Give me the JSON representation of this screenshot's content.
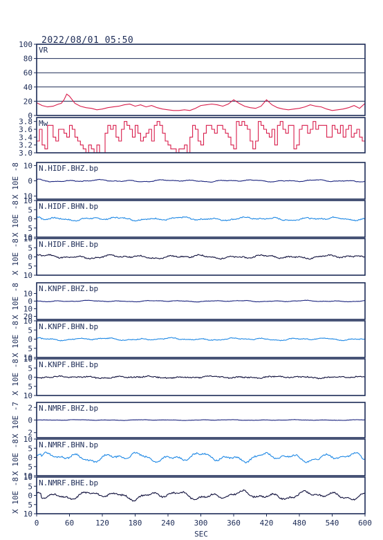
{
  "timestamp": "2022/08/01  05:50",
  "xlabel": "SEC",
  "x_ticks": [
    "0",
    "60",
    "120",
    "180",
    "240",
    "300",
    "360",
    "420",
    "480",
    "540",
    "600"
  ],
  "colors": {
    "axis": "#1b2a55",
    "vr": "#d81b4a",
    "mw": "#d81b4a",
    "bhz": "#1a237e",
    "bhn": "#1e88e5",
    "bhe": "#0d0d3a"
  },
  "chart_data": [
    {
      "type": "line",
      "label": "VR",
      "ylabel": "",
      "xlim": [
        0,
        600
      ],
      "ylim": [
        0,
        100
      ],
      "yticks": [
        0,
        20,
        40,
        60,
        80,
        100
      ],
      "ytick_labels": [
        "0",
        "20",
        "40",
        "60",
        "80",
        "100"
      ],
      "grid": true,
      "series": [
        {
          "color": "#d81b4a",
          "x": [
            0,
            10,
            20,
            30,
            40,
            45,
            50,
            55,
            60,
            70,
            80,
            90,
            100,
            110,
            120,
            130,
            140,
            150,
            160,
            170,
            180,
            190,
            200,
            210,
            220,
            230,
            240,
            250,
            260,
            270,
            280,
            290,
            300,
            310,
            320,
            330,
            340,
            350,
            360,
            370,
            380,
            390,
            400,
            410,
            420,
            430,
            440,
            450,
            460,
            470,
            480,
            490,
            500,
            510,
            520,
            530,
            540,
            550,
            560,
            570,
            580,
            590,
            600
          ],
          "y": [
            18,
            14,
            12,
            13,
            16,
            17,
            22,
            30,
            27,
            17,
            13,
            11,
            10,
            8,
            9,
            11,
            12,
            13,
            15,
            16,
            13,
            15,
            12,
            14,
            11,
            9,
            8,
            7,
            7,
            8,
            7,
            10,
            14,
            15,
            16,
            15,
            13,
            16,
            22,
            17,
            13,
            11,
            10,
            13,
            22,
            15,
            11,
            9,
            8,
            9,
            10,
            12,
            15,
            13,
            12,
            9,
            7,
            8,
            9,
            11,
            14,
            10,
            17
          ]
        }
      ]
    },
    {
      "type": "line",
      "label": "Mw",
      "ylabel": "",
      "xlim": [
        0,
        600
      ],
      "ylim": [
        3.0,
        3.9
      ],
      "yticks": [
        3.0,
        3.2,
        3.4,
        3.6,
        3.8
      ],
      "ytick_labels": [
        "3.0",
        "3.2",
        "3.4",
        "3.6",
        "3.8"
      ],
      "grid": false,
      "series": [
        {
          "color": "#d81b4a",
          "x": [
            0,
            5,
            10,
            15,
            20,
            25,
            30,
            35,
            40,
            45,
            50,
            55,
            60,
            65,
            70,
            75,
            80,
            85,
            90,
            95,
            100,
            105,
            110,
            115,
            120,
            125,
            130,
            135,
            140,
            145,
            150,
            155,
            160,
            165,
            170,
            175,
            180,
            185,
            190,
            195,
            200,
            205,
            210,
            215,
            220,
            225,
            230,
            235,
            240,
            245,
            250,
            255,
            260,
            265,
            270,
            275,
            280,
            285,
            290,
            295,
            300,
            305,
            310,
            315,
            320,
            325,
            330,
            335,
            340,
            345,
            350,
            355,
            360,
            365,
            370,
            375,
            380,
            385,
            390,
            395,
            400,
            405,
            410,
            415,
            420,
            425,
            430,
            435,
            440,
            445,
            450,
            455,
            460,
            465,
            470,
            475,
            480,
            485,
            490,
            495,
            500,
            505,
            510,
            515,
            520,
            525,
            530,
            535,
            540,
            545,
            550,
            555,
            560,
            565,
            570,
            575,
            580,
            585,
            590,
            595,
            600
          ],
          "y": [
            3.3,
            3.6,
            3.2,
            3.1,
            3.7,
            3.7,
            3.4,
            3.3,
            3.6,
            3.6,
            3.5,
            3.4,
            3.7,
            3.6,
            3.4,
            3.3,
            3.2,
            3.1,
            3.0,
            3.2,
            3.1,
            3.0,
            3.2,
            3.0,
            3.0,
            3.5,
            3.7,
            3.6,
            3.7,
            3.4,
            3.3,
            3.6,
            3.8,
            3.7,
            3.6,
            3.4,
            3.7,
            3.5,
            3.3,
            3.4,
            3.5,
            3.6,
            3.3,
            3.7,
            3.8,
            3.7,
            3.5,
            3.3,
            3.2,
            3.1,
            3.1,
            3.0,
            3.1,
            3.1,
            3.2,
            3.0,
            3.4,
            3.7,
            3.6,
            3.3,
            3.2,
            3.5,
            3.7,
            3.7,
            3.6,
            3.5,
            3.7,
            3.7,
            3.6,
            3.5,
            3.4,
            3.2,
            3.1,
            3.8,
            3.7,
            3.8,
            3.7,
            3.6,
            3.3,
            3.1,
            3.3,
            3.8,
            3.7,
            3.6,
            3.5,
            3.4,
            3.6,
            3.2,
            3.7,
            3.8,
            3.6,
            3.5,
            3.7,
            3.7,
            3.1,
            3.2,
            3.6,
            3.7,
            3.7,
            3.5,
            3.6,
            3.8,
            3.6,
            3.7,
            3.7,
            3.7,
            3.4,
            3.4,
            3.7,
            3.6,
            3.5,
            3.7,
            3.4,
            3.6,
            3.7,
            3.4,
            3.5,
            3.6,
            3.4,
            3.3,
            3.3
          ]
        }
      ]
    },
    {
      "type": "line",
      "label": "N.HIDF.BHZ.bp",
      "ylabel": "X 10E -8",
      "xlim": [
        0,
        600
      ],
      "ylim": [
        -12,
        12
      ],
      "yticks": [
        -10,
        0,
        10
      ],
      "ytick_labels": [
        "10",
        "0",
        "10"
      ],
      "grid": false,
      "series": [
        {
          "color": "#1a237e",
          "amp": 0.6,
          "seed": 3,
          "noise": 0.15
        }
      ]
    },
    {
      "type": "line",
      "label": "N.HIDF.BHN.bp",
      "ylabel": "X 10E -8",
      "xlim": [
        0,
        600
      ],
      "ylim": [
        -10,
        10
      ],
      "yticks": [
        -10,
        -5,
        0,
        5,
        10
      ],
      "ytick_labels": [
        "10",
        "5",
        "0",
        "5",
        "10"
      ],
      "grid": false,
      "series": [
        {
          "color": "#1e88e5",
          "amp": 0.8,
          "seed": 7,
          "noise": 0.3
        }
      ]
    },
    {
      "type": "line",
      "label": "N.HIDF.BHE.bp",
      "ylabel": "X 10E -8",
      "xlim": [
        0,
        600
      ],
      "ylim": [
        -10,
        10
      ],
      "yticks": [
        -10,
        -5,
        0,
        5,
        10
      ],
      "ytick_labels": [
        "10",
        "5",
        "0",
        "5",
        "10"
      ],
      "grid": false,
      "series": [
        {
          "color": "#0d0d3a",
          "amp": 0.9,
          "seed": 11,
          "noise": 0.3
        }
      ]
    },
    {
      "type": "line",
      "label": "N.KNPF.BHZ.bp",
      "ylabel": "X 10E -8",
      "xlim": [
        0,
        600
      ],
      "ylim": [
        -24,
        24
      ],
      "yticks": [
        -20,
        -10,
        0,
        10
      ],
      "ytick_labels": [
        "20",
        "10",
        "0",
        "10"
      ],
      "grid": false,
      "series": [
        {
          "color": "#1a237e",
          "amp": 0.8,
          "seed": 13,
          "noise": 0.2
        }
      ]
    },
    {
      "type": "line",
      "label": "N.KNPF.BHN.bp",
      "ylabel": "X 10E -8",
      "xlim": [
        0,
        600
      ],
      "ylim": [
        -10,
        10
      ],
      "yticks": [
        -10,
        -5,
        0,
        5,
        10
      ],
      "ytick_labels": [
        "10",
        "5",
        "0",
        "5",
        "10"
      ],
      "grid": false,
      "series": [
        {
          "color": "#1e88e5",
          "amp": 0.6,
          "seed": 17,
          "noise": 0.2
        }
      ]
    },
    {
      "type": "line",
      "label": "N.KNPF.BHE.bp",
      "ylabel": "X 10E -8",
      "xlim": [
        0,
        600
      ],
      "ylim": [
        -10,
        10
      ],
      "yticks": [
        -10,
        -5,
        0,
        5,
        10
      ],
      "ytick_labels": [
        "10",
        "5",
        "0",
        "5",
        "10"
      ],
      "grid": false,
      "series": [
        {
          "color": "#0d0d3a",
          "amp": 0.5,
          "seed": 19,
          "noise": 0.3
        }
      ]
    },
    {
      "type": "line",
      "label": "N.NMRF.BHZ.bp",
      "ylabel": "X 10E -7",
      "xlim": [
        0,
        600
      ],
      "ylim": [
        -2.8,
        2.8
      ],
      "yticks": [
        -2,
        0,
        2
      ],
      "ytick_labels": [
        "2",
        "0",
        "2"
      ],
      "grid": false,
      "series": [
        {
          "color": "#1a237e",
          "amp": 0.05,
          "seed": 23,
          "noise": 0.02
        }
      ]
    },
    {
      "type": "line",
      "label": "N.NMRF.BHN.bp",
      "ylabel": "X 10E -8",
      "xlim": [
        0,
        600
      ],
      "ylim": [
        -10,
        10
      ],
      "yticks": [
        -10,
        -5,
        0,
        5,
        10
      ],
      "ytick_labels": [
        "10",
        "5",
        "0",
        "5",
        "10"
      ],
      "grid": false,
      "series": [
        {
          "color": "#1e88e5",
          "amp": 2.2,
          "seed": 29,
          "noise": 0.4
        }
      ]
    },
    {
      "type": "line",
      "label": "N.NMRF.BHE.bp",
      "ylabel": "X 10E -8",
      "xlim": [
        0,
        600
      ],
      "ylim": [
        -10,
        10
      ],
      "yticks": [
        -10,
        -5,
        0,
        5,
        10
      ],
      "ytick_labels": [
        "10",
        "5",
        "0",
        "5",
        "10"
      ],
      "grid": false,
      "series": [
        {
          "color": "#0d0d3a",
          "amp": 2.0,
          "seed": 31,
          "noise": 0.4
        }
      ]
    }
  ]
}
